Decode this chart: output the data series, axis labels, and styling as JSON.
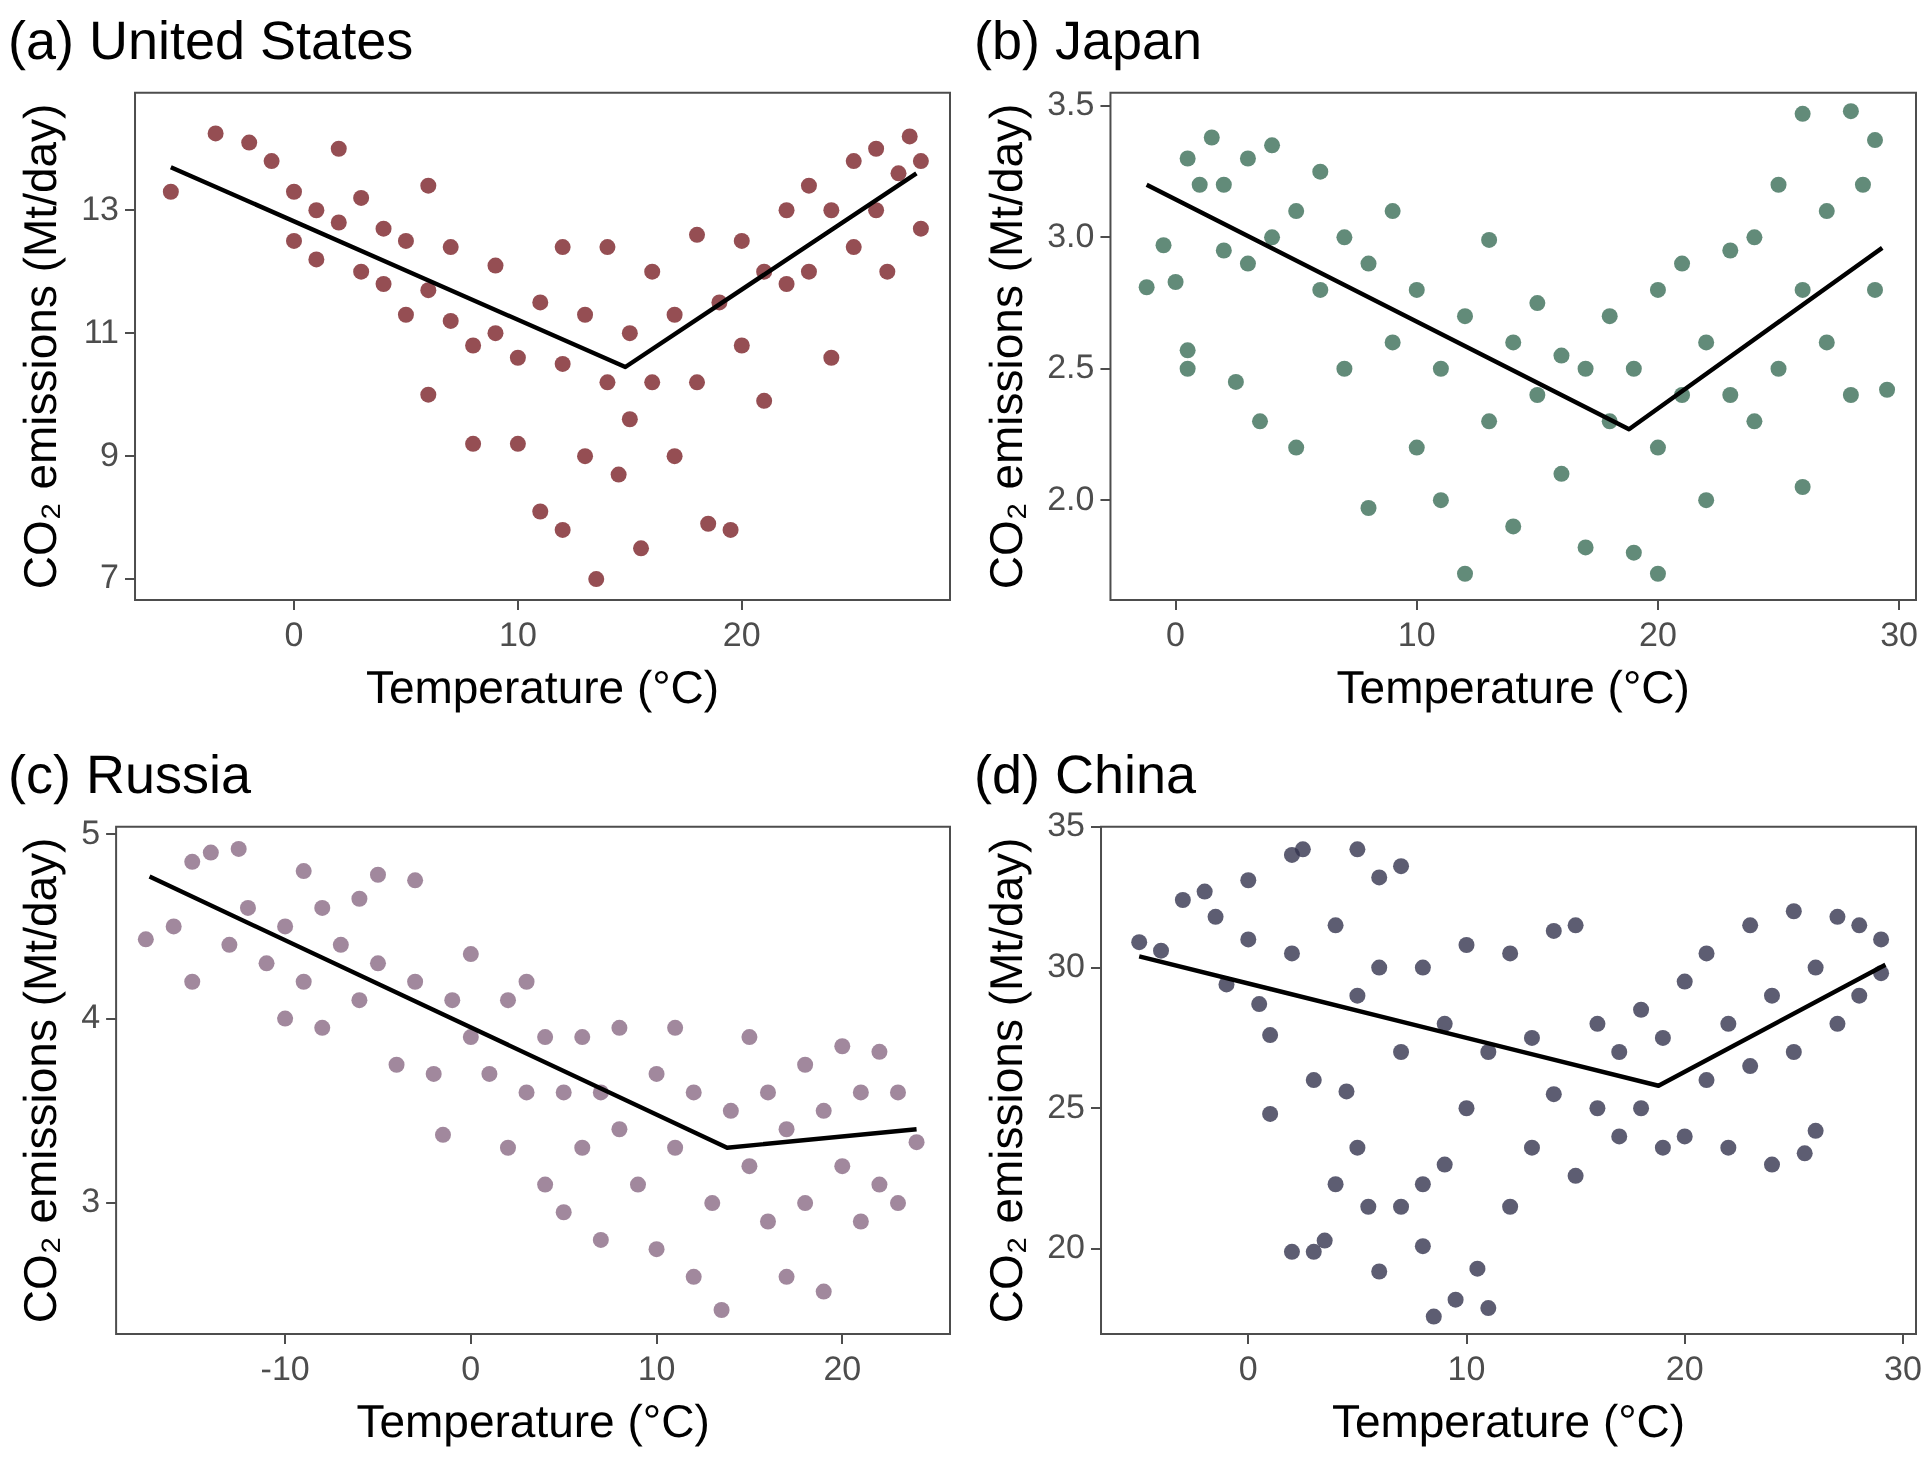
{
  "chart_data": [
    {
      "type": "scatter",
      "title": "(a) United States",
      "xlabel": "Temperature (°C)",
      "ylabel": "CO₂ emissions (Mt/day)",
      "xlim": [
        -7.1,
        29.3
      ],
      "ylim": [
        6.66,
        14.91
      ],
      "xticks": [
        0,
        10,
        20
      ],
      "yticks": [
        7,
        9,
        11,
        13
      ],
      "grid": false,
      "legend": false,
      "marker": "circle",
      "series": [
        {
          "type": "scatter",
          "color": "#7b2228",
          "x": [
            -5.5,
            -3.5,
            -2,
            -1,
            0,
            0,
            1,
            1,
            2,
            2,
            3,
            3,
            4,
            4,
            5,
            5,
            6,
            6,
            6,
            7,
            7,
            8,
            8,
            9,
            9,
            10,
            10,
            11,
            11,
            12,
            12,
            12,
            13,
            13,
            13.5,
            14,
            14,
            14.5,
            15,
            15,
            15.5,
            16,
            16,
            17,
            17,
            18,
            18,
            18.5,
            19,
            19.5,
            20,
            20,
            21,
            21,
            22,
            22,
            23,
            23,
            24,
            24,
            25,
            25,
            26,
            26,
            26.5,
            27,
            27.5,
            28,
            28
          ],
          "values": [
            13.3,
            14.25,
            14.1,
            13.8,
            13.3,
            12.5,
            12.2,
            13.0,
            14.0,
            12.8,
            12.0,
            13.2,
            11.8,
            12.7,
            11.3,
            12.5,
            11.7,
            13.4,
            10.0,
            11.2,
            12.4,
            10.8,
            9.2,
            12.1,
            11.0,
            10.6,
            9.2,
            11.5,
            8.1,
            10.5,
            7.8,
            12.4,
            11.3,
            9.0,
            7.0,
            10.2,
            12.4,
            8.7,
            11.0,
            9.6,
            7.5,
            10.2,
            12.0,
            11.3,
            9.0,
            12.6,
            10.2,
            7.9,
            11.5,
            7.8,
            12.5,
            10.8,
            12.0,
            9.9,
            13.0,
            11.8,
            13.4,
            12.0,
            13.0,
            10.6,
            13.8,
            12.4,
            14.0,
            13.0,
            12.0,
            13.6,
            14.2,
            13.8,
            12.7
          ]
        },
        {
          "type": "line",
          "color": "#000000",
          "marker": "none",
          "x": [
            -5.5,
            14.8,
            27.8
          ],
          "values": [
            13.7,
            10.45,
            13.6
          ]
        }
      ]
    },
    {
      "type": "scatter",
      "title": "(b) Japan",
      "xlabel": "Temperature (°C)",
      "ylabel": "CO₂ emissions (Mt/day)",
      "xlim": [
        -2.7,
        30.7
      ],
      "ylim": [
        1.62,
        3.55
      ],
      "xticks": [
        0,
        10,
        20,
        30
      ],
      "yticks": [
        {
          "value": 2,
          "label": "2.0"
        },
        2.5,
        {
          "value": 3,
          "label": "3.0"
        },
        3.5
      ],
      "grid": false,
      "legend": false,
      "marker": "circle",
      "series": [
        {
          "type": "scatter",
          "color": "#3b6e57",
          "x": [
            -1.2,
            -0.5,
            0,
            0.5,
            0.5,
            0.5,
            1,
            1.5,
            2,
            2,
            2.5,
            3,
            3,
            3.5,
            4,
            4,
            5,
            5,
            6,
            6,
            7,
            7,
            8,
            8,
            9,
            9,
            10,
            10,
            11,
            11,
            12,
            12,
            13,
            13,
            14,
            14,
            15,
            15,
            16,
            16,
            17,
            17,
            18,
            18,
            19,
            19,
            20,
            20,
            20,
            21,
            21,
            22,
            22,
            23,
            23,
            24,
            24,
            25,
            25,
            26,
            26,
            26,
            27,
            27,
            28,
            28,
            28.5,
            29,
            29,
            29.5
          ],
          "values": [
            2.81,
            2.97,
            2.83,
            2.57,
            2.5,
            3.3,
            3.2,
            3.38,
            2.95,
            3.2,
            2.45,
            3.3,
            2.9,
            2.3,
            3.35,
            3.0,
            2.2,
            3.1,
            2.8,
            3.25,
            2.5,
            3.0,
            1.97,
            2.9,
            2.6,
            3.1,
            2.2,
            2.8,
            2.5,
            2.0,
            2.7,
            1.72,
            2.3,
            2.99,
            1.9,
            2.6,
            2.4,
            2.75,
            2.1,
            2.55,
            1.82,
            2.5,
            2.3,
            2.7,
            1.8,
            2.5,
            1.72,
            2.2,
            2.8,
            2.4,
            2.9,
            2.0,
            2.6,
            2.4,
            2.95,
            2.3,
            3.0,
            2.5,
            3.2,
            2.05,
            2.8,
            3.47,
            2.6,
            3.1,
            3.48,
            2.4,
            3.2,
            3.37,
            2.8,
            2.42
          ]
        },
        {
          "type": "line",
          "color": "#000000",
          "marker": "none",
          "x": [
            -1.2,
            18.8,
            29.3
          ],
          "values": [
            3.2,
            2.27,
            2.96
          ]
        }
      ]
    },
    {
      "type": "scatter",
      "title": "(c) Russia",
      "xlabel": "Temperature (°C)",
      "ylabel": "CO₂ emissions (Mt/day)",
      "xlim": [
        -19.1,
        25.8
      ],
      "ylim": [
        2.29,
        5.04
      ],
      "xticks": [
        -10,
        0,
        10,
        20
      ],
      "yticks": [
        3,
        4,
        5
      ],
      "grid": false,
      "legend": false,
      "marker": "circle",
      "series": [
        {
          "type": "scatter",
          "color": "#8a6a85",
          "x": [
            -17.5,
            -16,
            -15,
            -15,
            -14,
            -13,
            -12.5,
            -12,
            -11,
            -10,
            -10,
            -9,
            -9,
            -8,
            -8,
            -7,
            -6,
            -6,
            -5,
            -5,
            -4,
            -3,
            -3,
            -2,
            -1.5,
            -1,
            0,
            0,
            1,
            2,
            2,
            3,
            3,
            4,
            4,
            5,
            5,
            6,
            6,
            7,
            7,
            8,
            8,
            9,
            10,
            10,
            11,
            11,
            12,
            12,
            13,
            13.5,
            14,
            15,
            15,
            16,
            16,
            17,
            17,
            18,
            18,
            19,
            19,
            20,
            20,
            21,
            21,
            22,
            22,
            23,
            23,
            24
          ],
          "values": [
            4.43,
            4.5,
            4.85,
            4.2,
            4.9,
            4.4,
            4.92,
            4.6,
            4.3,
            4.5,
            4.0,
            4.8,
            4.2,
            4.6,
            3.95,
            4.4,
            4.65,
            4.1,
            4.78,
            4.3,
            3.75,
            4.75,
            4.2,
            3.7,
            3.37,
            4.1,
            3.9,
            4.35,
            3.7,
            4.1,
            3.3,
            4.2,
            3.6,
            3.1,
            3.9,
            2.95,
            3.6,
            3.9,
            3.3,
            2.8,
            3.6,
            3.95,
            3.4,
            3.1,
            3.7,
            2.75,
            3.95,
            3.3,
            2.6,
            3.6,
            3.0,
            2.42,
            3.5,
            3.9,
            3.2,
            2.9,
            3.6,
            2.6,
            3.4,
            3.75,
            3.0,
            2.52,
            3.5,
            3.85,
            3.2,
            2.9,
            3.6,
            3.82,
            3.1,
            3.6,
            3.0,
            3.33
          ]
        },
        {
          "type": "line",
          "color": "#000000",
          "marker": "none",
          "x": [
            -17.3,
            13.8,
            24
          ],
          "values": [
            4.77,
            3.3,
            3.4
          ]
        }
      ]
    },
    {
      "type": "scatter",
      "title": "(d) China",
      "xlabel": "Temperature (°C)",
      "ylabel": "CO₂ emissions (Mt/day)",
      "xlim": [
        -6.75,
        30.6
      ],
      "ylim": [
        16.98,
        35
      ],
      "xticks": [
        0,
        10,
        20,
        30
      ],
      "yticks": [
        20,
        25,
        30,
        35
      ],
      "grid": false,
      "legend": false,
      "marker": "circle",
      "series": [
        {
          "type": "scatter",
          "color": "#35354f",
          "x": [
            -5,
            -4,
            -3,
            -2,
            -1.5,
            -1,
            0,
            0,
            0.5,
            1,
            1,
            2,
            2,
            2,
            2.5,
            3,
            3,
            3.5,
            4,
            4,
            4.5,
            5,
            5,
            5,
            5.5,
            6,
            6,
            6,
            7,
            7,
            7,
            8,
            8,
            8,
            8.5,
            9,
            9,
            9.5,
            10,
            10,
            10.5,
            11,
            11,
            12,
            12,
            13,
            13,
            14,
            14,
            15,
            15,
            16,
            16,
            17,
            17,
            18,
            18,
            19,
            19,
            20,
            20,
            21,
            21,
            22,
            22,
            23,
            23,
            24,
            24,
            25,
            25,
            25.5,
            26,
            26,
            27,
            27,
            28,
            28,
            29,
            29
          ],
          "values": [
            30.9,
            30.6,
            32.4,
            32.7,
            31.8,
            29.4,
            33.1,
            31.0,
            28.7,
            24.8,
            27.6,
            34.0,
            30.5,
            19.9,
            34.2,
            26.0,
            19.9,
            20.3,
            31.5,
            22.3,
            25.6,
            34.2,
            29.0,
            23.6,
            21.5,
            33.2,
            30.0,
            19.2,
            33.6,
            27.0,
            21.5,
            30.0,
            22.3,
            20.1,
            17.6,
            28.0,
            23.0,
            18.2,
            30.8,
            25.0,
            19.3,
            27.0,
            17.9,
            30.5,
            21.5,
            27.5,
            23.6,
            31.3,
            25.5,
            31.5,
            22.6,
            28.0,
            25.0,
            27.0,
            24.0,
            28.5,
            25.0,
            27.5,
            23.6,
            29.5,
            24.0,
            30.5,
            26.0,
            28.0,
            23.6,
            31.5,
            26.5,
            29.0,
            23.0,
            32.0,
            27.0,
            23.4,
            30.0,
            24.2,
            31.8,
            28.0,
            31.5,
            29.0,
            31.0,
            29.8
          ]
        },
        {
          "type": "line",
          "color": "#000000",
          "marker": "none",
          "x": [
            -5,
            18.8,
            29.2
          ],
          "values": [
            30.4,
            25.8,
            30.1
          ]
        }
      ]
    }
  ]
}
